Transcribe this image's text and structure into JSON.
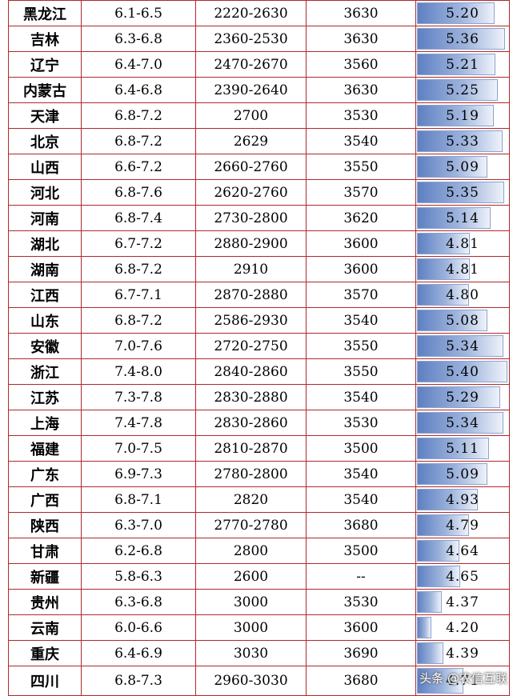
{
  "table": {
    "columns": [
      "region",
      "ph",
      "range_a",
      "value_b",
      "score"
    ],
    "rows": [
      {
        "region": "黑龙江",
        "ph": "6.1-6.5",
        "range_a": "2220-2630",
        "value_b": "3630",
        "score": "5.20"
      },
      {
        "region": "吉林",
        "ph": "6.3-6.8",
        "range_a": "2360-2530",
        "value_b": "3630",
        "score": "5.36"
      },
      {
        "region": "辽宁",
        "ph": "6.4-7.0",
        "range_a": "2470-2670",
        "value_b": "3560",
        "score": "5.21"
      },
      {
        "region": "内蒙古",
        "ph": "6.4-6.8",
        "range_a": "2390-2640",
        "value_b": "3630",
        "score": "5.25"
      },
      {
        "region": "天津",
        "ph": "6.8-7.2",
        "range_a": "2700",
        "value_b": "3530",
        "score": "5.19"
      },
      {
        "region": "北京",
        "ph": "6.8-7.2",
        "range_a": "2629",
        "value_b": "3540",
        "score": "5.33"
      },
      {
        "region": "山西",
        "ph": "6.6-7.2",
        "range_a": "2660-2760",
        "value_b": "3550",
        "score": "5.09"
      },
      {
        "region": "河北",
        "ph": "6.8-7.6",
        "range_a": "2620-2760",
        "value_b": "3570",
        "score": "5.35"
      },
      {
        "region": "河南",
        "ph": "6.8-7.4",
        "range_a": "2730-2800",
        "value_b": "3620",
        "score": "5.14"
      },
      {
        "region": "湖北",
        "ph": "6.7-7.2",
        "range_a": "2880-2900",
        "value_b": "3600",
        "score": "4.81"
      },
      {
        "region": "湖南",
        "ph": "6.8-7.2",
        "range_a": "2910",
        "value_b": "3600",
        "score": "4.81"
      },
      {
        "region": "江西",
        "ph": "6.7-7.1",
        "range_a": "2870-2880",
        "value_b": "3570",
        "score": "4.80"
      },
      {
        "region": "山东",
        "ph": "6.8-7.2",
        "range_a": "2586-2930",
        "value_b": "3540",
        "score": "5.08"
      },
      {
        "region": "安徽",
        "ph": "7.0-7.6",
        "range_a": "2720-2750",
        "value_b": "3550",
        "score": "5.34"
      },
      {
        "region": "浙江",
        "ph": "7.4-8.0",
        "range_a": "2840-2860",
        "value_b": "3550",
        "score": "5.40"
      },
      {
        "region": "江苏",
        "ph": "7.3-7.8",
        "range_a": "2830-2880",
        "value_b": "3540",
        "score": "5.29"
      },
      {
        "region": "上海",
        "ph": "7.4-7.8",
        "range_a": "2830-2860",
        "value_b": "3530",
        "score": "5.34"
      },
      {
        "region": "福建",
        "ph": "7.0-7.5",
        "range_a": "2810-2870",
        "value_b": "3500",
        "score": "5.11"
      },
      {
        "region": "广东",
        "ph": "6.9-7.3",
        "range_a": "2780-2800",
        "value_b": "3540",
        "score": "5.09"
      },
      {
        "region": "广西",
        "ph": "6.8-7.1",
        "range_a": "2820",
        "value_b": "3540",
        "score": "4.93"
      },
      {
        "region": "陕西",
        "ph": "6.3-7.0",
        "range_a": "2770-2780",
        "value_b": "3680",
        "score": "4.79"
      },
      {
        "region": "甘肃",
        "ph": "6.2-6.8",
        "range_a": "2800",
        "value_b": "3500",
        "score": "4.64"
      },
      {
        "region": "新疆",
        "ph": "5.8-6.3",
        "range_a": "2600",
        "value_b": "--",
        "score": "4.65"
      },
      {
        "region": "贵州",
        "ph": "6.3-6.8",
        "range_a": "3000",
        "value_b": "3530",
        "score": "4.37"
      },
      {
        "region": "云南",
        "ph": "6.0-6.6",
        "range_a": "3000",
        "value_b": "3600",
        "score": "4.20"
      },
      {
        "region": "重庆",
        "ph": "6.4-6.9",
        "range_a": "3030",
        "value_b": "3690",
        "score": "4.39"
      },
      {
        "region": "四川",
        "ph": "6.8-7.3",
        "range_a": "2960-3030",
        "value_b": "3680",
        "score": "4.71"
      }
    ]
  },
  "watermark": "头条 @农信互联",
  "colors": {
    "grid": "#b0282a",
    "bar_dark": "#5e80c2",
    "bar_light": "#eef2fa"
  }
}
